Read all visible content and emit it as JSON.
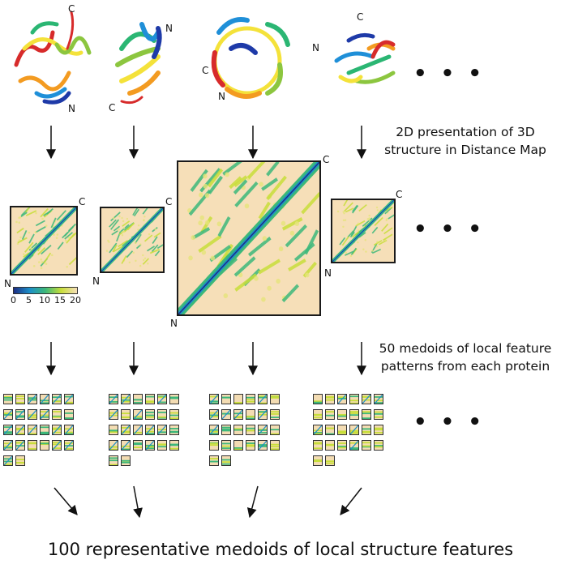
{
  "terminals": {
    "n": "N",
    "c": "C"
  },
  "ellipsis": "• • •",
  "captions": {
    "distance_map": [
      "2D presentation of 3D",
      "structure in Distance Map"
    ],
    "medoids": [
      "50 medoids of local feature",
      "patterns from each protein"
    ],
    "final": "100 representative medoids of local structure features"
  },
  "colorbar": {
    "ticks": [
      "0",
      "5",
      "10",
      "15",
      "20"
    ],
    "colors": [
      "#1c2e84",
      "#1c8fc8",
      "#3cb87a",
      "#c8de3a",
      "#f6dfb8"
    ]
  },
  "protein_colors": [
    "#1e3aa8",
    "#1f8fd8",
    "#2bb673",
    "#8cc63f",
    "#f4e23a",
    "#f39b21",
    "#d72b2b"
  ],
  "medoid_grids": {
    "cols": 6,
    "full_rows": 4,
    "extra_tiles": 2
  }
}
